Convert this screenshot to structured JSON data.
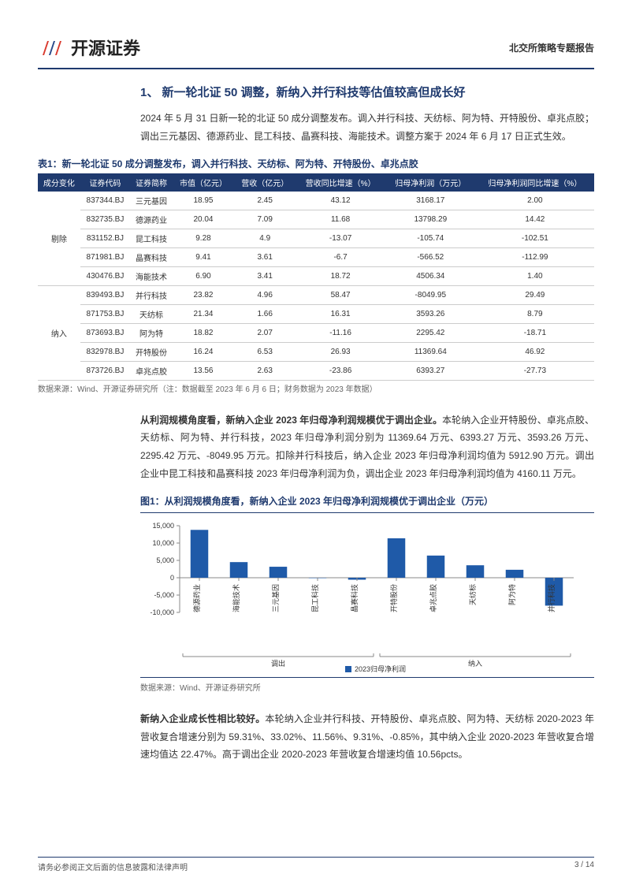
{
  "header": {
    "logo_text": "开源证券",
    "right": "北交所策略专题报告"
  },
  "section_title": "1、 新一轮北证 50 调整，新纳入并行科技等估值较高但成长好",
  "para1": "2024 年 5 月 31 日新一轮的北证 50 成分调整发布。调入并行科技、天纺标、阿为特、开特股份、卓兆点胶；调出三元基因、德源药业、昆工科技、晶赛科技、海能技术。调整方案于 2024 年 6 月 17 日正式生效。",
  "table1": {
    "title": "表1：新一轮北证 50 成分调整发布，调入并行科技、天纺标、阿为特、开特股份、卓兆点胶",
    "columns": [
      "成分变化",
      "证券代码",
      "证券简称",
      "市值（亿元）",
      "营收（亿元）",
      "营收同比增速（%）",
      "归母净利润（万元）",
      "归母净利润同比增速（%）"
    ],
    "groups": [
      {
        "label": "剔除",
        "rows": [
          [
            "837344.BJ",
            "三元基因",
            "18.95",
            "2.45",
            "43.12",
            "3168.17",
            "2.00"
          ],
          [
            "832735.BJ",
            "德源药业",
            "20.04",
            "7.09",
            "11.68",
            "13798.29",
            "14.42"
          ],
          [
            "831152.BJ",
            "昆工科技",
            "9.28",
            "4.9",
            "-13.07",
            "-105.74",
            "-102.51"
          ],
          [
            "871981.BJ",
            "晶赛科技",
            "9.41",
            "3.61",
            "-6.7",
            "-566.52",
            "-112.99"
          ],
          [
            "430476.BJ",
            "海能技术",
            "6.90",
            "3.41",
            "18.72",
            "4506.34",
            "1.40"
          ]
        ]
      },
      {
        "label": "纳入",
        "rows": [
          [
            "839493.BJ",
            "并行科技",
            "23.82",
            "4.96",
            "58.47",
            "-8049.95",
            "29.49"
          ],
          [
            "871753.BJ",
            "天纺标",
            "21.34",
            "1.66",
            "16.31",
            "3593.26",
            "8.79"
          ],
          [
            "873693.BJ",
            "阿为特",
            "18.82",
            "2.07",
            "-11.16",
            "2295.42",
            "-18.71"
          ],
          [
            "832978.BJ",
            "开特股份",
            "16.24",
            "6.53",
            "26.93",
            "11369.64",
            "46.92"
          ],
          [
            "873726.BJ",
            "卓兆点胶",
            "13.56",
            "2.63",
            "-23.86",
            "6393.27",
            "-27.73"
          ]
        ]
      }
    ],
    "source": "数据来源：Wind、开源证券研究所（注：数据截至 2023 年 6 月 6 日；财务数据为 2023 年数据）"
  },
  "para2_bold": "从利润规模角度看，新纳入企业 2023 年归母净利润规模优于调出企业。",
  "para2": "本轮纳入企业开特股份、卓兆点胶、天纺标、阿为特、并行科技，2023 年归母净利润分别为 11369.64 万元、6393.27 万元、3593.26 万元、2295.42 万元、-8049.95 万元。扣除并行科技后，纳入企业 2023 年归母净利润均值为 5912.90 万元。调出企业中昆工科技和晶赛科技 2023 年归母净利润为负，调出企业 2023 年归母净利润均值为 4160.11 万元。",
  "chart1": {
    "title": "图1：从利润规模角度看，新纳入企业 2023 年归母净利润规模优于调出企业（万元）",
    "type": "bar",
    "y_min": -10000,
    "y_max": 15000,
    "y_step": 5000,
    "y_ticks": [
      -10000,
      -5000,
      0,
      5000,
      10000,
      15000
    ],
    "bar_color": "#1f5aa8",
    "axis_color": "#888888",
    "grid_color": "#888888",
    "tick_font_size": 9,
    "label_font_size": 9,
    "legend_label": "2023归母净利润",
    "legend_color": "#1f5aa8",
    "groups": [
      {
        "label": "调出",
        "items": [
          {
            "name": "德源药业",
            "value": 13798.29
          },
          {
            "name": "海能技术",
            "value": 4506.34
          },
          {
            "name": "三元基因",
            "value": 3168.17
          },
          {
            "name": "昆工科技",
            "value": -105.74
          },
          {
            "name": "晶赛科技",
            "value": -566.52
          }
        ]
      },
      {
        "label": "纳入",
        "items": [
          {
            "name": "开特股份",
            "value": 11369.64
          },
          {
            "name": "卓兆点胶",
            "value": 6393.27
          },
          {
            "name": "天纺标",
            "value": 3593.26
          },
          {
            "name": "阿为特",
            "value": 2295.42
          },
          {
            "name": "并行科技",
            "value": -8049.95
          }
        ]
      }
    ],
    "source": "数据来源：Wind、开源证券研究所"
  },
  "para3_bold": "新纳入企业成长性相比较好。",
  "para3": "本轮纳入企业并行科技、开特股份、卓兆点胶、阿为特、天纺标 2020-2023 年营收复合增速分别为 59.31%、33.02%、11.56%、9.31%、-0.85%，其中纳入企业 2020-2023 年营收复合增速均值达 22.47%。高于调出企业 2020-2023 年营收复合增速均值 10.56pcts。",
  "footer": {
    "left": "请务必参阅正文后面的信息披露和法律声明",
    "right": "3 / 14"
  }
}
